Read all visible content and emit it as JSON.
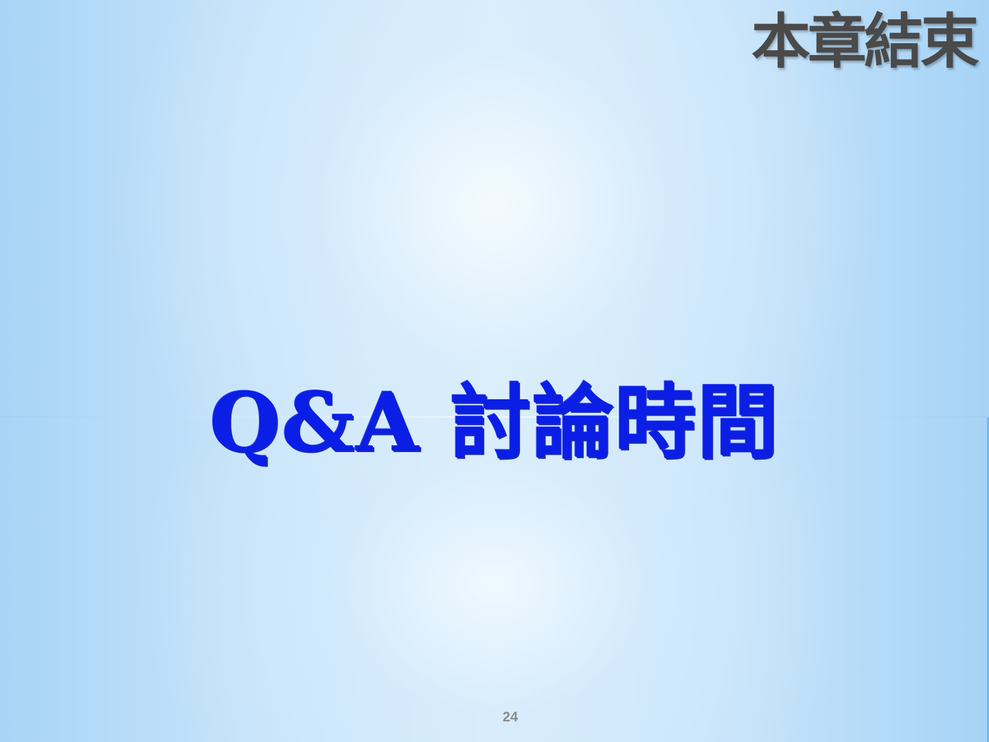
{
  "slide": {
    "corner_title": "本章結束",
    "main_title": "Q&A 討論時間",
    "page_number": "24"
  },
  "colors": {
    "main_title": "#0a1ee6",
    "corner_title": "#4a4a4a",
    "page_number": "#8a8a8a",
    "background_light": "#f5fbff",
    "background_edge": "#a8d4f6"
  }
}
